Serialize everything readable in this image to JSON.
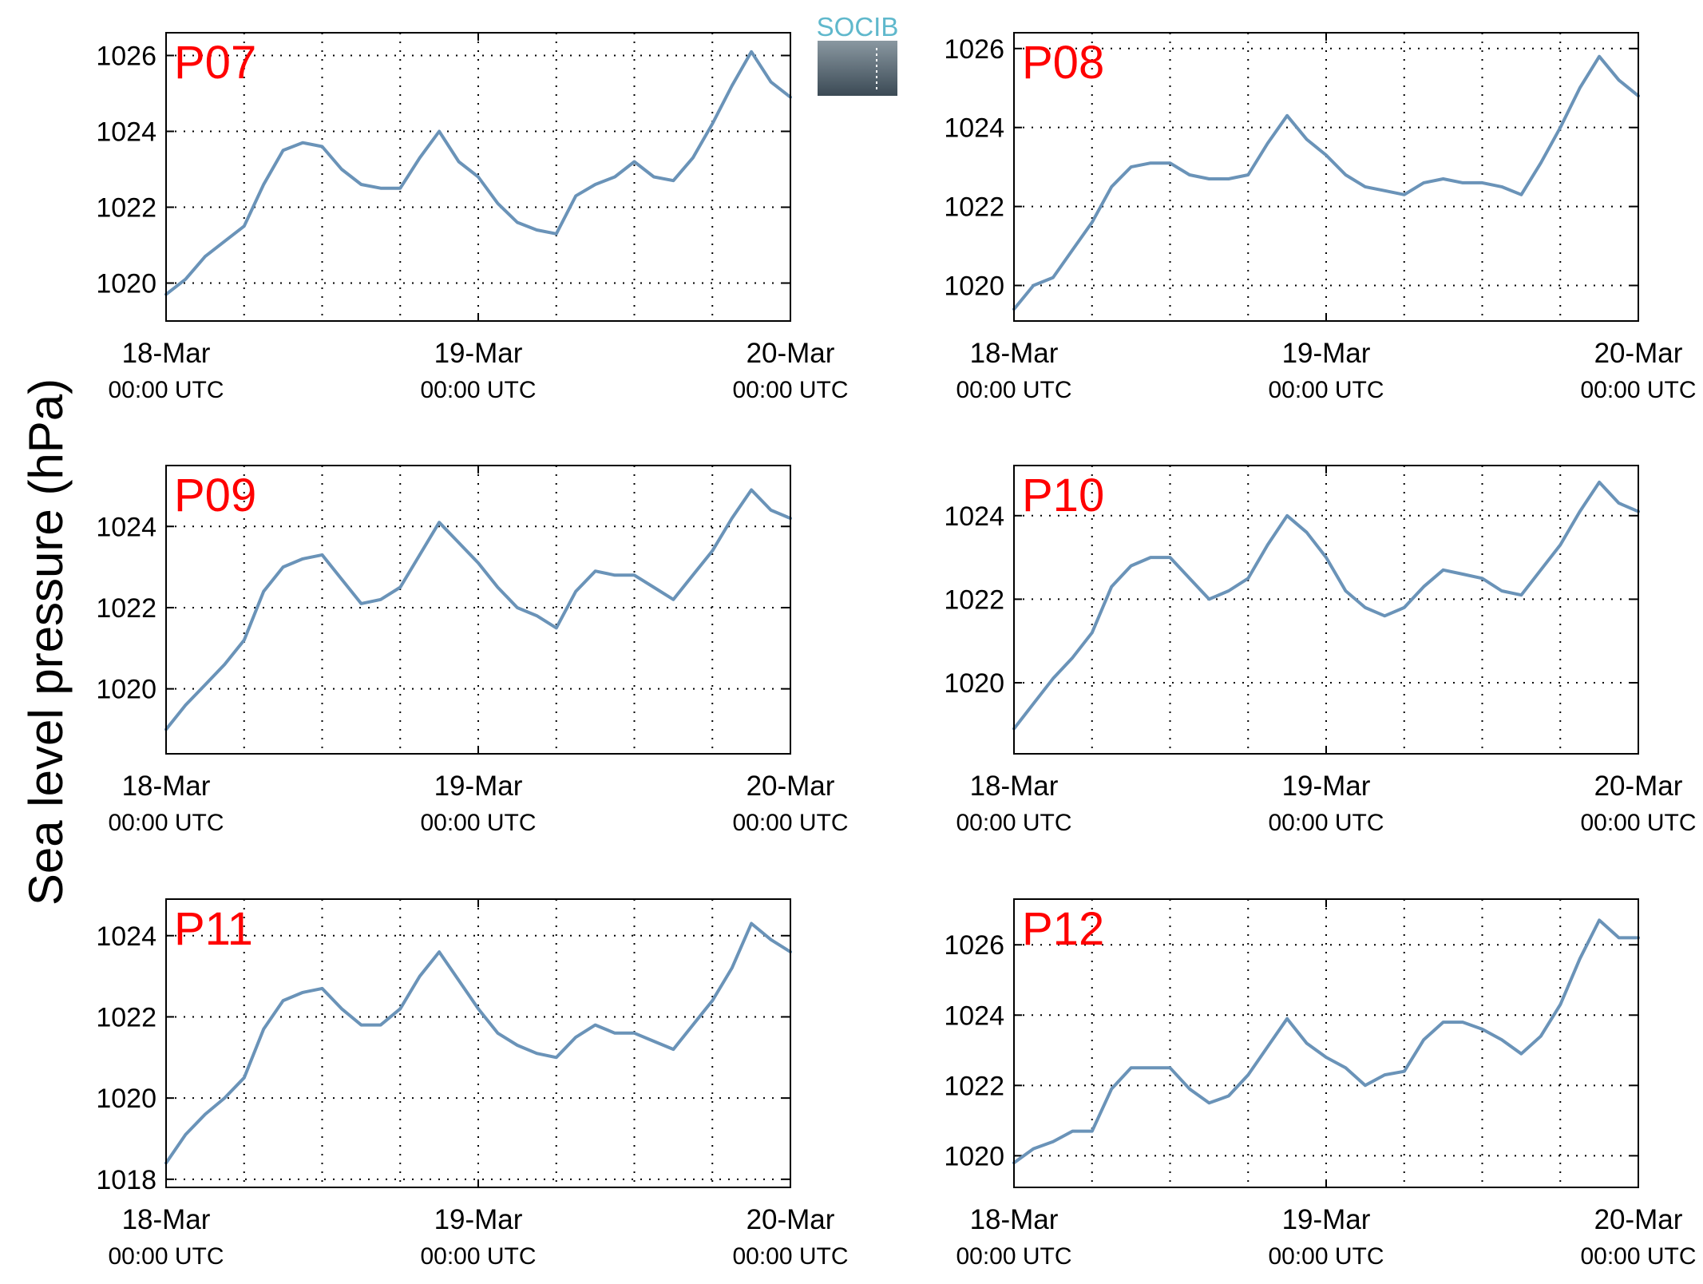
{
  "ylabel": "Sea level pressure (hPa)",
  "logo": {
    "text": "SOCIB"
  },
  "colors": {
    "line": "#6a93b8",
    "label": "#ff0000",
    "grid": "#000000",
    "logo_text": "#5fb8cc",
    "logo_bg_top": "#8e9ca5",
    "logo_bg_bottom": "#3b4a55"
  },
  "chart_data": [
    {
      "type": "line",
      "title": "P07",
      "ylim": [
        1019,
        1026.6
      ],
      "yticks": [
        1020,
        1022,
        1024,
        1026
      ],
      "x_ticks": [
        {
          "date": "18-Mar",
          "time": "00:00 UTC"
        },
        {
          "date": "19-Mar",
          "time": "00:00 UTC"
        },
        {
          "date": "20-Mar",
          "time": "00:00 UTC"
        }
      ],
      "x_hours": [
        0,
        1.5,
        3,
        4.5,
        6,
        7.5,
        9,
        10.5,
        12,
        13.5,
        15,
        16.5,
        18,
        19.5,
        21,
        22.5,
        24,
        25.5,
        27,
        28.5,
        30,
        31.5,
        33,
        34.5,
        36,
        37.5,
        39,
        40.5,
        42,
        43.5,
        45,
        46.5,
        48
      ],
      "series": [
        {
          "values": [
            1019.7,
            1020.1,
            1020.7,
            1021.1,
            1021.5,
            1022.6,
            1023.5,
            1023.7,
            1023.6,
            1023.0,
            1022.6,
            1022.5,
            1022.5,
            1023.3,
            1024.0,
            1023.2,
            1022.8,
            1022.1,
            1021.6,
            1021.4,
            1021.3,
            1022.3,
            1022.6,
            1022.8,
            1023.2,
            1022.8,
            1022.7,
            1023.3,
            1024.2,
            1025.2,
            1026.1,
            1025.3,
            1024.9
          ]
        }
      ]
    },
    {
      "type": "line",
      "title": "P08",
      "ylim": [
        1019.1,
        1026.4
      ],
      "yticks": [
        1020,
        1022,
        1024,
        1026
      ],
      "x_ticks": [
        {
          "date": "18-Mar",
          "time": "00:00 UTC"
        },
        {
          "date": "19-Mar",
          "time": "00:00 UTC"
        },
        {
          "date": "20-Mar",
          "time": "00:00 UTC"
        }
      ],
      "x_hours": [
        0,
        1.5,
        3,
        4.5,
        6,
        7.5,
        9,
        10.5,
        12,
        13.5,
        15,
        16.5,
        18,
        19.5,
        21,
        22.5,
        24,
        25.5,
        27,
        28.5,
        30,
        31.5,
        33,
        34.5,
        36,
        37.5,
        39,
        40.5,
        42,
        43.5,
        45,
        46.5,
        48
      ],
      "series": [
        {
          "values": [
            1019.4,
            1020.0,
            1020.2,
            1020.9,
            1021.6,
            1022.5,
            1023.0,
            1023.1,
            1023.1,
            1022.8,
            1022.7,
            1022.7,
            1022.8,
            1023.6,
            1024.3,
            1023.7,
            1023.3,
            1022.8,
            1022.5,
            1022.4,
            1022.3,
            1022.6,
            1022.7,
            1022.6,
            1022.6,
            1022.5,
            1022.3,
            1023.1,
            1024.0,
            1025.0,
            1025.8,
            1025.2,
            1024.8
          ]
        }
      ]
    },
    {
      "type": "line",
      "title": "P09",
      "ylim": [
        1018.4,
        1025.5
      ],
      "yticks": [
        1020,
        1022,
        1024
      ],
      "x_ticks": [
        {
          "date": "18-Mar",
          "time": "00:00 UTC"
        },
        {
          "date": "19-Mar",
          "time": "00:00 UTC"
        },
        {
          "date": "20-Mar",
          "time": "00:00 UTC"
        }
      ],
      "x_hours": [
        0,
        1.5,
        3,
        4.5,
        6,
        7.5,
        9,
        10.5,
        12,
        13.5,
        15,
        16.5,
        18,
        19.5,
        21,
        22.5,
        24,
        25.5,
        27,
        28.5,
        30,
        31.5,
        33,
        34.5,
        36,
        37.5,
        39,
        40.5,
        42,
        43.5,
        45,
        46.5,
        48
      ],
      "series": [
        {
          "values": [
            1019.0,
            1019.6,
            1020.1,
            1020.6,
            1021.2,
            1022.4,
            1023.0,
            1023.2,
            1023.3,
            1022.7,
            1022.1,
            1022.2,
            1022.5,
            1023.3,
            1024.1,
            1023.6,
            1023.1,
            1022.5,
            1022.0,
            1021.8,
            1021.5,
            1022.4,
            1022.9,
            1022.8,
            1022.8,
            1022.5,
            1022.2,
            1022.8,
            1023.4,
            1024.2,
            1024.9,
            1024.4,
            1024.2
          ]
        }
      ]
    },
    {
      "type": "line",
      "title": "P10",
      "ylim": [
        1018.3,
        1025.2
      ],
      "yticks": [
        1020,
        1022,
        1024
      ],
      "x_ticks": [
        {
          "date": "18-Mar",
          "time": "00:00 UTC"
        },
        {
          "date": "19-Mar",
          "time": "00:00 UTC"
        },
        {
          "date": "20-Mar",
          "time": "00:00 UTC"
        }
      ],
      "x_hours": [
        0,
        1.5,
        3,
        4.5,
        6,
        7.5,
        9,
        10.5,
        12,
        13.5,
        15,
        16.5,
        18,
        19.5,
        21,
        22.5,
        24,
        25.5,
        27,
        28.5,
        30,
        31.5,
        33,
        34.5,
        36,
        37.5,
        39,
        40.5,
        42,
        43.5,
        45,
        46.5,
        48
      ],
      "series": [
        {
          "values": [
            1018.9,
            1019.5,
            1020.1,
            1020.6,
            1021.2,
            1022.3,
            1022.8,
            1023.0,
            1023.0,
            1022.5,
            1022.0,
            1022.2,
            1022.5,
            1023.3,
            1024.0,
            1023.6,
            1023.0,
            1022.2,
            1021.8,
            1021.6,
            1021.8,
            1022.3,
            1022.7,
            1022.6,
            1022.5,
            1022.2,
            1022.1,
            1022.7,
            1023.3,
            1024.1,
            1024.8,
            1024.3,
            1024.1
          ]
        }
      ]
    },
    {
      "type": "line",
      "title": "P11",
      "ylim": [
        1017.8,
        1024.9
      ],
      "yticks": [
        1018,
        1020,
        1022,
        1024
      ],
      "x_ticks": [
        {
          "date": "18-Mar",
          "time": "00:00 UTC"
        },
        {
          "date": "19-Mar",
          "time": "00:00 UTC"
        },
        {
          "date": "20-Mar",
          "time": "00:00 UTC"
        }
      ],
      "x_hours": [
        0,
        1.5,
        3,
        4.5,
        6,
        7.5,
        9,
        10.5,
        12,
        13.5,
        15,
        16.5,
        18,
        19.5,
        21,
        22.5,
        24,
        25.5,
        27,
        28.5,
        30,
        31.5,
        33,
        34.5,
        36,
        37.5,
        39,
        40.5,
        42,
        43.5,
        45,
        46.5,
        48
      ],
      "series": [
        {
          "values": [
            1018.4,
            1019.1,
            1019.6,
            1020.0,
            1020.5,
            1021.7,
            1022.4,
            1022.6,
            1022.7,
            1022.2,
            1021.8,
            1021.8,
            1022.2,
            1023.0,
            1023.6,
            1022.9,
            1022.2,
            1021.6,
            1021.3,
            1021.1,
            1021.0,
            1021.5,
            1021.8,
            1021.6,
            1021.6,
            1021.4,
            1021.2,
            1021.8,
            1022.4,
            1023.2,
            1024.3,
            1023.9,
            1023.6
          ]
        }
      ]
    },
    {
      "type": "line",
      "title": "P12",
      "ylim": [
        1019.1,
        1027.3
      ],
      "yticks": [
        1020,
        1022,
        1024,
        1026
      ],
      "x_ticks": [
        {
          "date": "18-Mar",
          "time": "00:00 UTC"
        },
        {
          "date": "19-Mar",
          "time": "00:00 UTC"
        },
        {
          "date": "20-Mar",
          "time": "00:00 UTC"
        }
      ],
      "x_hours": [
        0,
        1.5,
        3,
        4.5,
        6,
        7.5,
        9,
        10.5,
        12,
        13.5,
        15,
        16.5,
        18,
        19.5,
        21,
        22.5,
        24,
        25.5,
        27,
        28.5,
        30,
        31.5,
        33,
        34.5,
        36,
        37.5,
        39,
        40.5,
        42,
        43.5,
        45,
        46.5,
        48
      ],
      "series": [
        {
          "values": [
            1019.8,
            1020.2,
            1020.4,
            1020.7,
            1020.7,
            1021.9,
            1022.5,
            1022.5,
            1022.5,
            1021.9,
            1021.5,
            1021.7,
            1022.3,
            1023.1,
            1023.9,
            1023.2,
            1022.8,
            1022.5,
            1022.0,
            1022.3,
            1022.4,
            1023.3,
            1023.8,
            1023.8,
            1023.6,
            1023.3,
            1022.9,
            1023.4,
            1024.3,
            1025.6,
            1026.7,
            1026.2,
            1026.2
          ]
        }
      ]
    }
  ]
}
